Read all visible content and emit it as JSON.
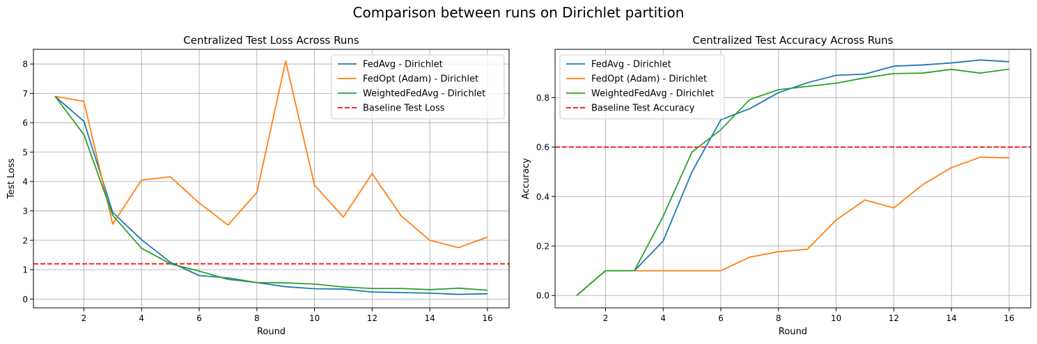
{
  "figure": {
    "suptitle": "Comparison between runs on Dirichlet partition"
  },
  "colors": {
    "fedavg": "#1f77b4",
    "fedopt": "#ff7f0e",
    "weighted": "#2ca02c",
    "baseline": "#ff0000",
    "grid": "#b0b0b0"
  },
  "chart_data": [
    {
      "type": "line",
      "title": "Centralized Test Loss Across Runs",
      "xlabel": "Round",
      "ylabel": "Test Loss",
      "xlim": [
        0.25,
        16.75
      ],
      "ylim": [
        -0.3,
        8.5
      ],
      "xticks": [
        2,
        4,
        6,
        8,
        10,
        12,
        14,
        16
      ],
      "yticks": [
        0,
        1,
        2,
        3,
        4,
        5,
        6,
        7,
        8
      ],
      "ytick_labels": [
        "0",
        "1",
        "2",
        "3",
        "4",
        "5",
        "6",
        "7",
        "8"
      ],
      "grid": true,
      "legend_position": "top-right",
      "x": [
        1,
        2,
        3,
        4,
        5,
        6,
        7,
        8,
        9,
        10,
        11,
        12,
        13,
        14,
        15,
        16
      ],
      "series": [
        {
          "name": "FedAvg - Dirichlet",
          "color": "#1f77b4",
          "values": [
            6.9,
            6.05,
            2.95,
            2.02,
            1.25,
            0.8,
            0.72,
            0.56,
            0.42,
            0.35,
            0.34,
            0.24,
            0.22,
            0.2,
            0.16,
            0.18
          ]
        },
        {
          "name": "FedOpt (Adam) - Dirichlet",
          "color": "#ff7f0e",
          "values": [
            6.9,
            6.73,
            2.55,
            4.05,
            4.16,
            3.27,
            2.52,
            3.63,
            8.1,
            3.88,
            2.79,
            4.27,
            2.84,
            2.0,
            1.75,
            2.11
          ]
        },
        {
          "name": "WeightedFedAvg - Dirichlet",
          "color": "#2ca02c",
          "values": [
            6.9,
            5.6,
            2.85,
            1.73,
            1.2,
            0.95,
            0.67,
            0.56,
            0.55,
            0.51,
            0.41,
            0.36,
            0.36,
            0.32,
            0.37,
            0.3
          ]
        }
      ],
      "baseline": {
        "name": "Baseline Test Loss",
        "value": 1.2,
        "color": "#ff0000"
      }
    },
    {
      "type": "line",
      "title": "Centralized Test Accuracy Across Runs",
      "xlabel": "Round",
      "ylabel": "Accuracy",
      "xlim": [
        0.25,
        16.75
      ],
      "ylim": [
        -0.05,
        0.995
      ],
      "xticks": [
        2,
        4,
        6,
        8,
        10,
        12,
        14,
        16
      ],
      "yticks": [
        0,
        0.2,
        0.4,
        0.6,
        0.8
      ],
      "ytick_labels": [
        "0.0",
        "0.2",
        "0.4",
        "0.6",
        "0.8"
      ],
      "grid": true,
      "legend_position": "top-left",
      "x": [
        1,
        2,
        3,
        4,
        5,
        6,
        7,
        8,
        9,
        10,
        11,
        12,
        13,
        14,
        15,
        16
      ],
      "series": [
        {
          "name": "FedAvg - Dirichlet",
          "color": "#1f77b4",
          "values": [
            0.0,
            0.1,
            0.1,
            0.22,
            0.5,
            0.71,
            0.755,
            0.82,
            0.86,
            0.89,
            0.895,
            0.927,
            0.932,
            0.94,
            0.952,
            0.945
          ]
        },
        {
          "name": "FedOpt (Adam) - Dirichlet",
          "color": "#ff7f0e",
          "values": [
            0.0,
            0.1,
            0.1,
            0.1,
            0.1,
            0.1,
            0.155,
            0.177,
            0.187,
            0.305,
            0.386,
            0.354,
            0.448,
            0.517,
            0.559,
            0.556
          ]
        },
        {
          "name": "WeightedFedAvg - Dirichlet",
          "color": "#2ca02c",
          "values": [
            0.0,
            0.1,
            0.1,
            0.32,
            0.58,
            0.67,
            0.792,
            0.832,
            0.845,
            0.858,
            0.88,
            0.897,
            0.899,
            0.914,
            0.899,
            0.915
          ]
        }
      ],
      "baseline": {
        "name": "Baseline Test Accuracy",
        "value": 0.6,
        "color": "#ff0000"
      }
    }
  ]
}
